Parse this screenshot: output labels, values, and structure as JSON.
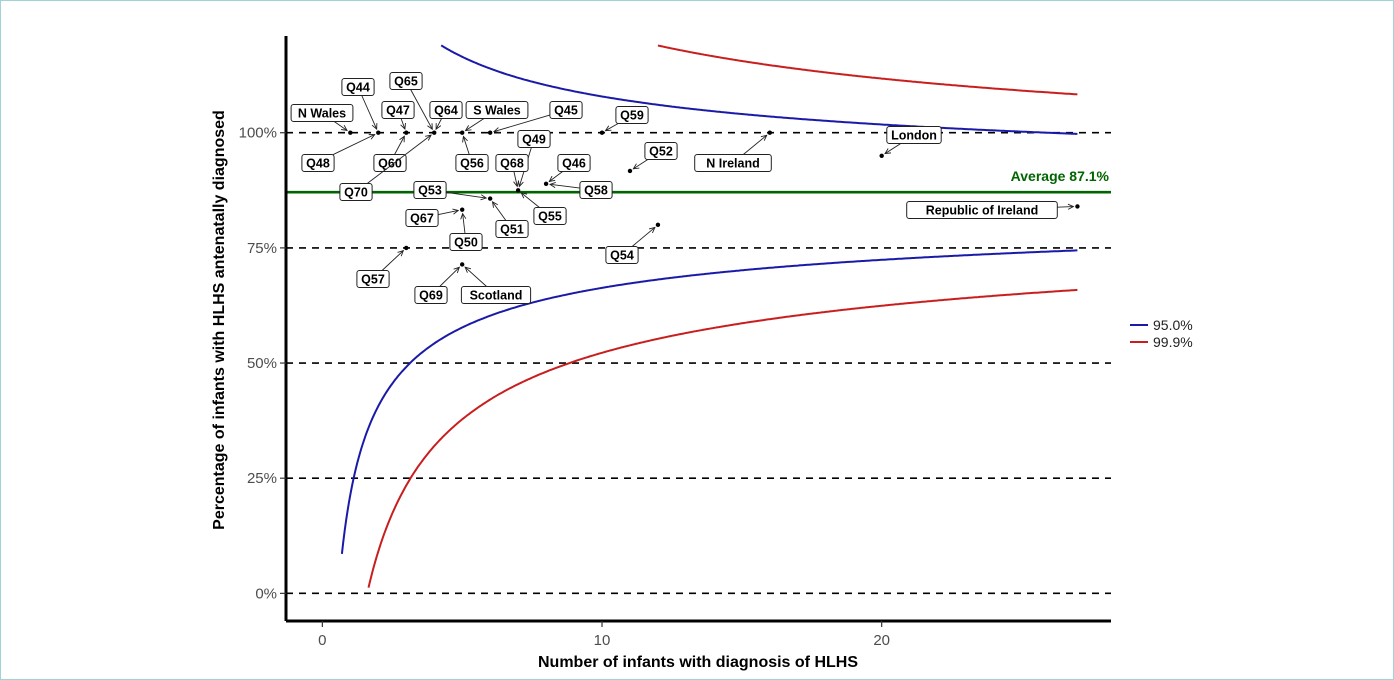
{
  "chart_data": {
    "type": "scatter",
    "title": "",
    "xlabel": "Number of infants with diagnosis of HLHS",
    "ylabel": "Percentage of infants with HLHS antenatally diagnosed",
    "xlim": [
      -1.3,
      28.2
    ],
    "ylim": [
      -6,
      121
    ],
    "x_ticks": [
      0,
      10,
      20
    ],
    "y_ticks": [
      {
        "v": 0,
        "label": "0%"
      },
      {
        "v": 25,
        "label": "25%"
      },
      {
        "v": 50,
        "label": "50%"
      },
      {
        "v": 75,
        "label": "75%"
      },
      {
        "v": 100,
        "label": "100%"
      }
    ],
    "dashed_lines": [
      0,
      25,
      50,
      75,
      100
    ],
    "average": {
      "value": 87.1,
      "label": "Average 87.1%",
      "color": "#006400"
    },
    "series": [
      {
        "name": "95.0%",
        "color": "#1a1aa8",
        "z": 1.96
      },
      {
        "name": "99.9%",
        "color": "#c81e1e",
        "z": 3.29
      }
    ],
    "legend": {
      "placement": "right"
    },
    "points": [
      {
        "label": "N Wales",
        "x": 1,
        "y": 100
      },
      {
        "label": "Q44",
        "x": 2,
        "y": 100
      },
      {
        "label": "Q48",
        "x": 2,
        "y": 100
      },
      {
        "label": "Q47",
        "x": 3,
        "y": 100
      },
      {
        "label": "Q60",
        "x": 3,
        "y": 100
      },
      {
        "label": "Q65",
        "x": 4,
        "y": 100
      },
      {
        "label": "Q64",
        "x": 4,
        "y": 100
      },
      {
        "label": "Q70",
        "x": 4,
        "y": 100
      },
      {
        "label": "S Wales",
        "x": 5,
        "y": 100
      },
      {
        "label": "Q56",
        "x": 5,
        "y": 100
      },
      {
        "label": "Q45",
        "x": 6,
        "y": 100
      },
      {
        "label": "Q59",
        "x": 10,
        "y": 100
      },
      {
        "label": "N Ireland",
        "x": 16,
        "y": 100
      },
      {
        "label": "London",
        "x": 20,
        "y": 95
      },
      {
        "label": "Q52",
        "x": 11,
        "y": 91.7
      },
      {
        "label": "Q49",
        "x": 7,
        "y": 87.5
      },
      {
        "label": "Q68",
        "x": 7,
        "y": 87.5
      },
      {
        "label": "Q55",
        "x": 7,
        "y": 87.5
      },
      {
        "label": "Q46",
        "x": 8,
        "y": 88.9
      },
      {
        "label": "Q58",
        "x": 8,
        "y": 88.9
      },
      {
        "label": "Q53",
        "x": 6,
        "y": 85.7
      },
      {
        "label": "Q51",
        "x": 6,
        "y": 85.7
      },
      {
        "label": "Q67",
        "x": 5,
        "y": 83.3
      },
      {
        "label": "Q50",
        "x": 5,
        "y": 83.3
      },
      {
        "label": "Republic of Ireland",
        "x": 27,
        "y": 84
      },
      {
        "label": "Q54",
        "x": 12,
        "y": 80
      },
      {
        "label": "Q57",
        "x": 3,
        "y": 75
      },
      {
        "label": "Q69",
        "x": 5,
        "y": 71.4
      },
      {
        "label": "Scotland",
        "x": 5,
        "y": 71.4
      }
    ]
  }
}
